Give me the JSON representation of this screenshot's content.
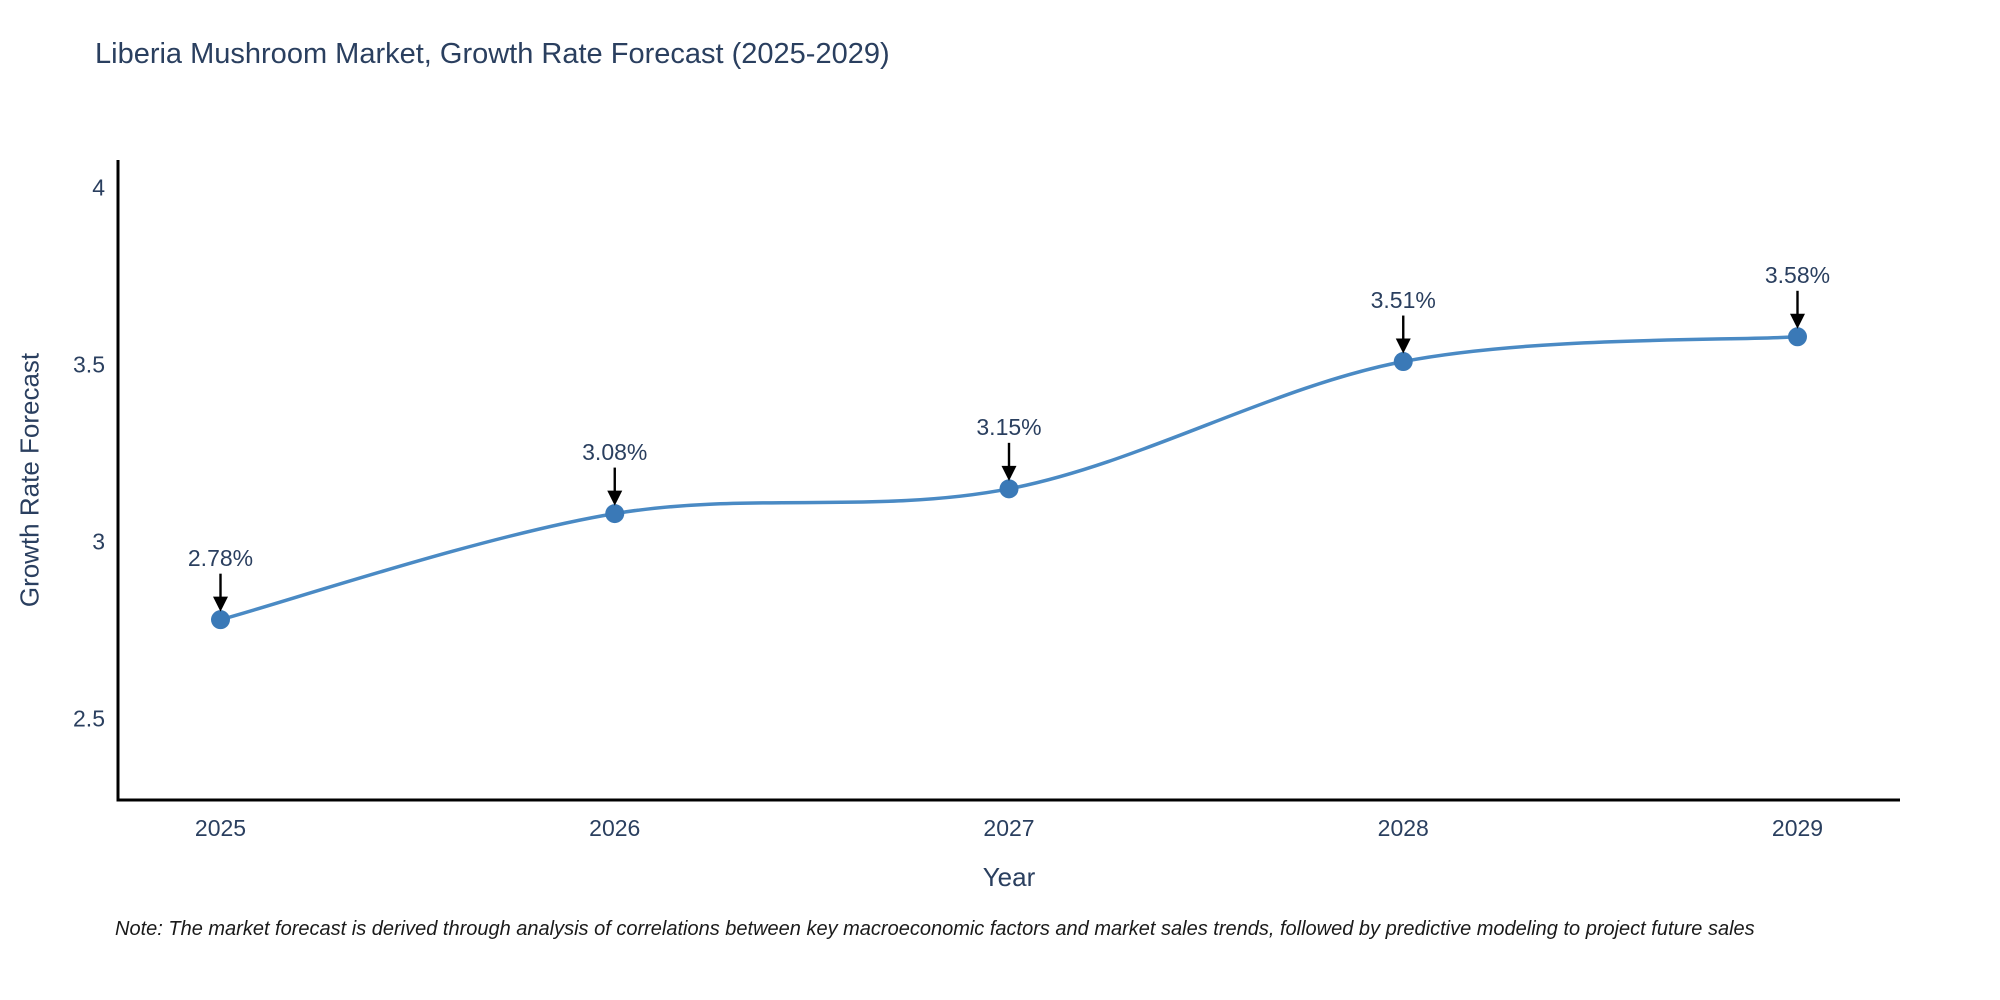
{
  "header": {
    "title": "Liberia Mushroom Market, Growth Rate Forecast (2025-2029)"
  },
  "chart_data": {
    "type": "line",
    "line_shape": "spline",
    "title": "Liberia Mushroom Market, Growth Rate Forecast (2025-2029)",
    "xlabel": "Year",
    "ylabel": "Growth Rate Forecast",
    "x": [
      2025,
      2026,
      2027,
      2028,
      2029
    ],
    "values": [
      2.78,
      3.08,
      3.15,
      3.51,
      3.58
    ],
    "point_labels": [
      "2.78%",
      "3.08%",
      "3.15%",
      "3.51%",
      "3.58%"
    ],
    "x_tick_labels": [
      "2025",
      "2026",
      "2027",
      "2028",
      "2029"
    ],
    "y_ticks": [
      2.5,
      3,
      3.5,
      4
    ],
    "y_tick_labels": [
      "2.5",
      "3",
      "3.5",
      "4"
    ],
    "xlim": [
      2024.74,
      2029.26
    ],
    "ylim": [
      2.27,
      4.08
    ],
    "grid": false,
    "legend": false
  },
  "note": {
    "text": "Note: The market forecast is derived through analysis of correlations between key macroeconomic factors and market sales trends, followed by predictive modeling to project future sales"
  },
  "colors": {
    "line": "#4a8ac4",
    "marker": "#3a79b7",
    "axis": "#000000",
    "arrow": "#000000",
    "text": "#2a3f5f",
    "note_text": "#1a1a1a",
    "background": "#ffffff"
  }
}
